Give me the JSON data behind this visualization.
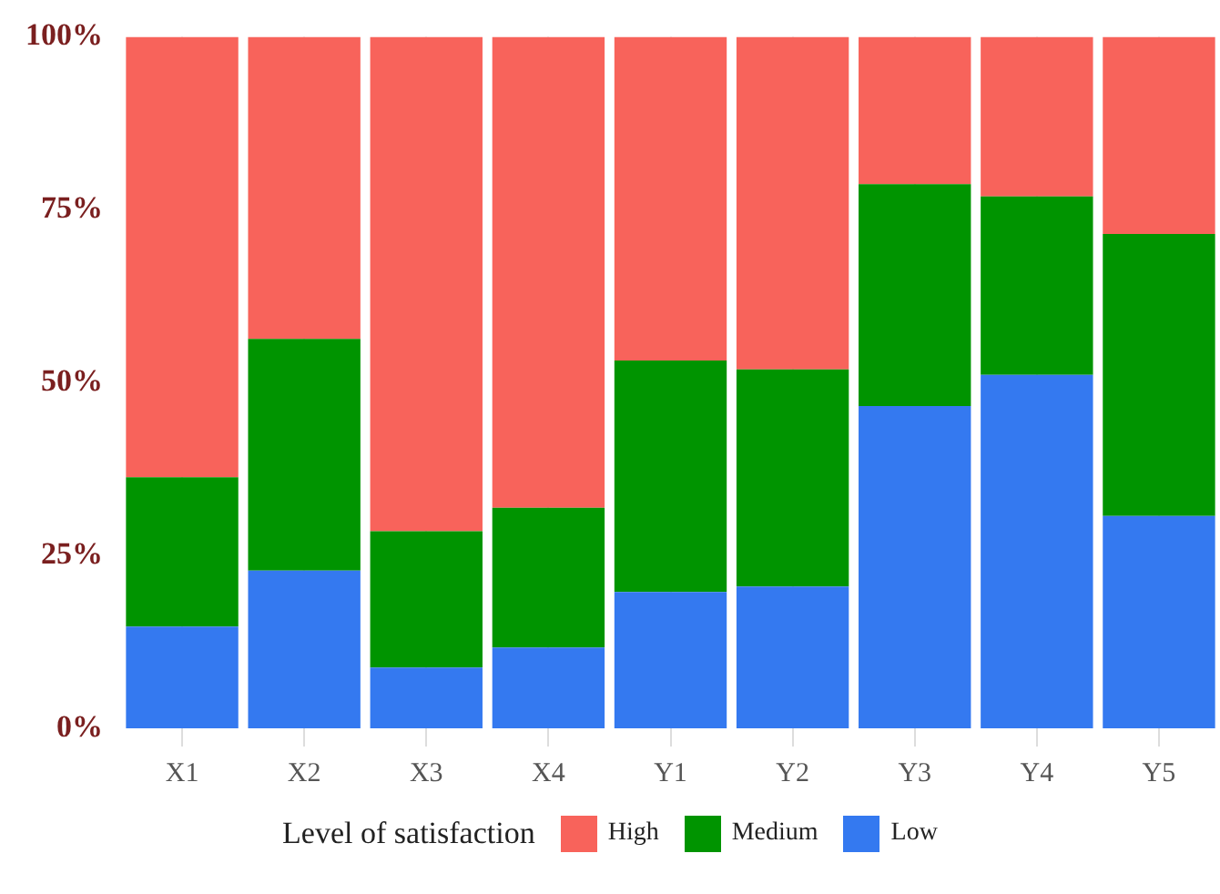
{
  "chart_data": {
    "type": "bar",
    "stacked": true,
    "legend": "bottom",
    "legend_title": "Level of satisfaction",
    "grid": "x",
    "categories": [
      "X1",
      "X2",
      "X3",
      "X4",
      "Y1",
      "Y2",
      "Y3",
      "Y4",
      "Y5"
    ],
    "ylim": [
      0,
      100
    ],
    "yticks": [
      {
        "value": 0,
        "label": "0%"
      },
      {
        "value": 25,
        "label": "25%"
      },
      {
        "value": 50,
        "label": "50%"
      },
      {
        "value": 75,
        "label": "75%"
      },
      {
        "value": 100,
        "label": "100%"
      }
    ],
    "series": [
      {
        "name": "Low",
        "color": "#3479f0",
        "values": [
          14.7,
          22.8,
          8.8,
          11.7,
          19.7,
          20.5,
          46.6,
          51.1,
          30.7
        ]
      },
      {
        "name": "Medium",
        "color": "#009400",
        "values": [
          21.6,
          33.5,
          19.7,
          20.2,
          33.5,
          31.4,
          32.1,
          25.8,
          40.8
        ]
      },
      {
        "name": "High",
        "color": "#f8635b",
        "values": [
          63.7,
          43.7,
          71.5,
          68.1,
          46.8,
          48.1,
          21.3,
          23.1,
          28.5
        ]
      }
    ]
  }
}
